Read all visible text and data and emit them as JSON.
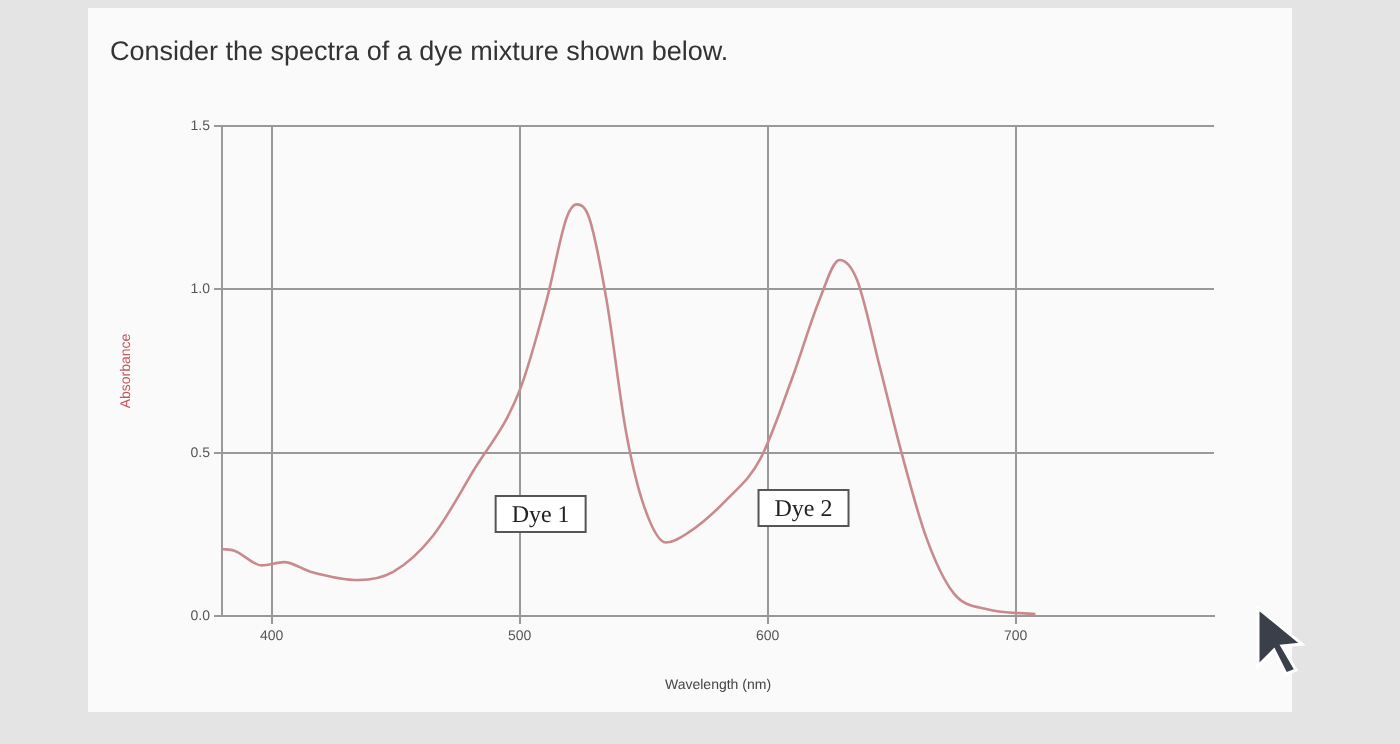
{
  "chart_data": {
    "type": "line",
    "title": "Consider the spectra of a dye mixture shown below.",
    "xlabel": "Wavelength (nm)",
    "ylabel": "Absorbance",
    "x": [
      380,
      385,
      396,
      405,
      416,
      435,
      449,
      465,
      481,
      500,
      511,
      519,
      523,
      528,
      535,
      543,
      550,
      559,
      568,
      584,
      597,
      610,
      621,
      629,
      636,
      645,
      654,
      664,
      675,
      689,
      708
    ],
    "series": [
      {
        "color": "#c98a8e",
        "values": [
          0.205,
          0.2,
          0.155,
          0.165,
          0.135,
          0.11,
          0.135,
          0.245,
          0.44,
          0.69,
          0.97,
          1.22,
          1.26,
          1.22,
          0.97,
          0.56,
          0.34,
          0.225,
          0.255,
          0.36,
          0.48,
          0.73,
          0.97,
          1.09,
          1.03,
          0.77,
          0.5,
          0.24,
          0.07,
          0.02,
          0.006
        ]
      }
    ],
    "xlim": [
      380,
      780
    ],
    "xticks": [
      400,
      500,
      600,
      700
    ],
    "ylim": [
      0,
      1.5
    ],
    "yticks": [
      {
        "value": 0,
        "label": "0.0"
      },
      {
        "value": 0.5,
        "label": "0.5"
      },
      {
        "value": 1,
        "label": "1.0"
      },
      {
        "value": 1.5,
        "label": "1.5"
      }
    ],
    "annotations": [
      "Dye 1",
      "Dye 2"
    ],
    "grid": true,
    "legend": false,
    "marker": "none",
    "line_style": "solid"
  }
}
